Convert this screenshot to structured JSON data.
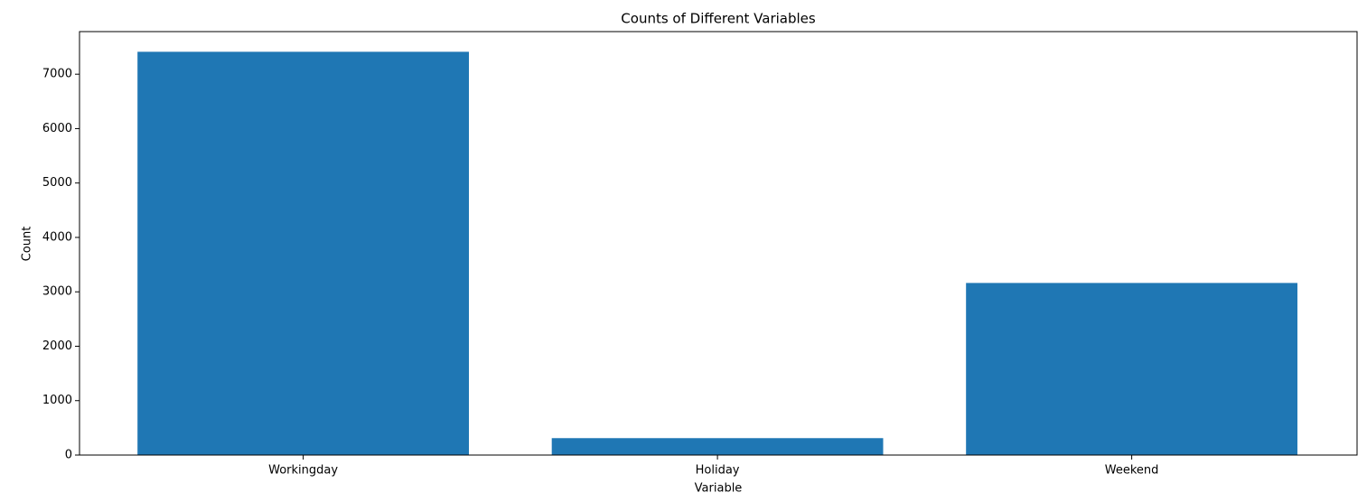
{
  "chart_data": {
    "type": "bar",
    "title": "Counts of Different Variables",
    "x_label": "Variable",
    "y_label": "Count",
    "categories": [
      "Workingday",
      "Holiday",
      "Weekend"
    ],
    "values": [
      7412,
      311,
      3163
    ],
    "color": "#1f77b4",
    "ylim": [
      0,
      7783
    ],
    "yticks": [
      0,
      1000,
      2000,
      3000,
      4000,
      5000,
      6000,
      7000
    ],
    "grid": false
  }
}
